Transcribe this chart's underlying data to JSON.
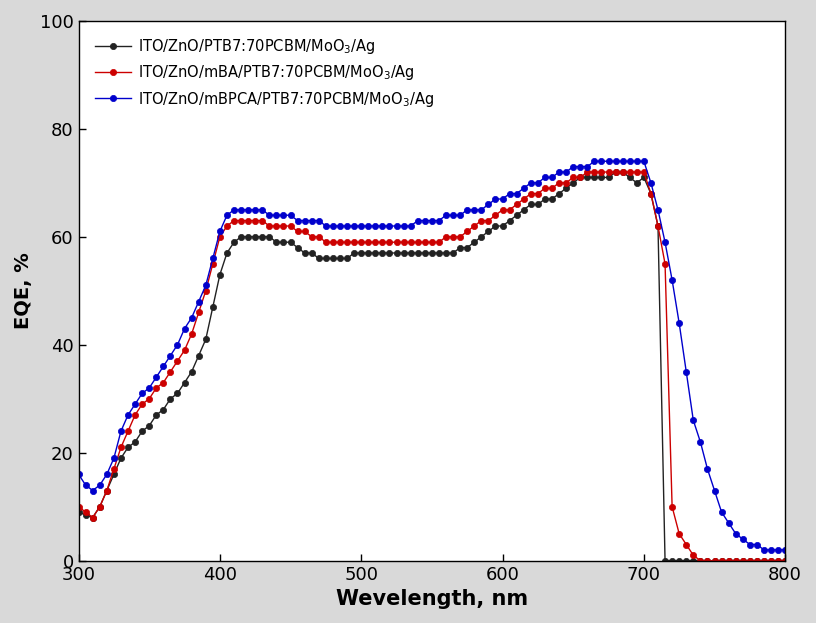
{
  "title": "",
  "xlabel": "Wevelength, nm",
  "ylabel": "EQE, %",
  "xlim": [
    300,
    800
  ],
  "ylim": [
    0,
    100
  ],
  "xticks": [
    300,
    400,
    500,
    600,
    700,
    800
  ],
  "yticks": [
    0,
    20,
    40,
    60,
    80,
    100
  ],
  "outer_bg": "#d9d9d9",
  "inner_bg": "#ffffff",
  "legend_labels": [
    "ITO/ZnO/PTB7:70PCBM/MoO$_3$/Ag",
    "ITO/ZnO/mBA/PTB7:70PCBM/MoO$_3$/Ag",
    "ITO/ZnO/mBPCA/PTB7:70PCBM/MoO$_3$/Ag"
  ],
  "colors": [
    "#222222",
    "#cc0000",
    "#0000cc"
  ],
  "wavelengths": [
    300,
    305,
    310,
    315,
    320,
    325,
    330,
    335,
    340,
    345,
    350,
    355,
    360,
    365,
    370,
    375,
    380,
    385,
    390,
    395,
    400,
    405,
    410,
    415,
    420,
    425,
    430,
    435,
    440,
    445,
    450,
    455,
    460,
    465,
    470,
    475,
    480,
    485,
    490,
    495,
    500,
    505,
    510,
    515,
    520,
    525,
    530,
    535,
    540,
    545,
    550,
    555,
    560,
    565,
    570,
    575,
    580,
    585,
    590,
    595,
    600,
    605,
    610,
    615,
    620,
    625,
    630,
    635,
    640,
    645,
    650,
    655,
    660,
    665,
    670,
    675,
    680,
    685,
    690,
    695,
    700,
    705,
    710,
    715,
    720,
    725,
    730,
    735,
    740,
    745,
    750,
    755,
    760,
    765,
    770,
    775,
    780,
    785,
    790,
    795,
    800
  ],
  "eqe_black": [
    9,
    8.5,
    8,
    10,
    13,
    16,
    19,
    21,
    22,
    24,
    25,
    27,
    28,
    30,
    31,
    33,
    35,
    38,
    41,
    47,
    53,
    57,
    59,
    60,
    60,
    60,
    60,
    60,
    59,
    59,
    59,
    58,
    57,
    57,
    56,
    56,
    56,
    56,
    56,
    57,
    57,
    57,
    57,
    57,
    57,
    57,
    57,
    57,
    57,
    57,
    57,
    57,
    57,
    57,
    58,
    58,
    59,
    60,
    61,
    62,
    62,
    63,
    64,
    65,
    66,
    66,
    67,
    67,
    68,
    69,
    70,
    71,
    71,
    71,
    71,
    71,
    72,
    72,
    71,
    70,
    71,
    68,
    62,
    0,
    0,
    0,
    0,
    0,
    0,
    0,
    0,
    0,
    0,
    0,
    0,
    0,
    0,
    0,
    0,
    0,
    0
  ],
  "eqe_red": [
    10,
    9,
    8,
    10,
    13,
    17,
    21,
    24,
    27,
    29,
    30,
    32,
    33,
    35,
    37,
    39,
    42,
    46,
    50,
    55,
    60,
    62,
    63,
    63,
    63,
    63,
    63,
    62,
    62,
    62,
    62,
    61,
    61,
    60,
    60,
    59,
    59,
    59,
    59,
    59,
    59,
    59,
    59,
    59,
    59,
    59,
    59,
    59,
    59,
    59,
    59,
    59,
    60,
    60,
    60,
    61,
    62,
    63,
    63,
    64,
    65,
    65,
    66,
    67,
    68,
    68,
    69,
    69,
    70,
    70,
    71,
    71,
    72,
    72,
    72,
    72,
    72,
    72,
    72,
    72,
    72,
    68,
    62,
    55,
    10,
    5,
    3,
    1,
    0,
    0,
    0,
    0,
    0,
    0,
    0,
    0,
    0,
    0,
    0,
    0,
    0
  ],
  "eqe_blue": [
    16,
    14,
    13,
    14,
    16,
    19,
    24,
    27,
    29,
    31,
    32,
    34,
    36,
    38,
    40,
    43,
    45,
    48,
    51,
    56,
    61,
    64,
    65,
    65,
    65,
    65,
    65,
    64,
    64,
    64,
    64,
    63,
    63,
    63,
    63,
    62,
    62,
    62,
    62,
    62,
    62,
    62,
    62,
    62,
    62,
    62,
    62,
    62,
    63,
    63,
    63,
    63,
    64,
    64,
    64,
    65,
    65,
    65,
    66,
    67,
    67,
    68,
    68,
    69,
    70,
    70,
    71,
    71,
    72,
    72,
    73,
    73,
    73,
    74,
    74,
    74,
    74,
    74,
    74,
    74,
    74,
    70,
    65,
    59,
    52,
    44,
    35,
    26,
    22,
    17,
    13,
    9,
    7,
    5,
    4,
    3,
    3,
    2,
    2,
    2,
    2
  ]
}
